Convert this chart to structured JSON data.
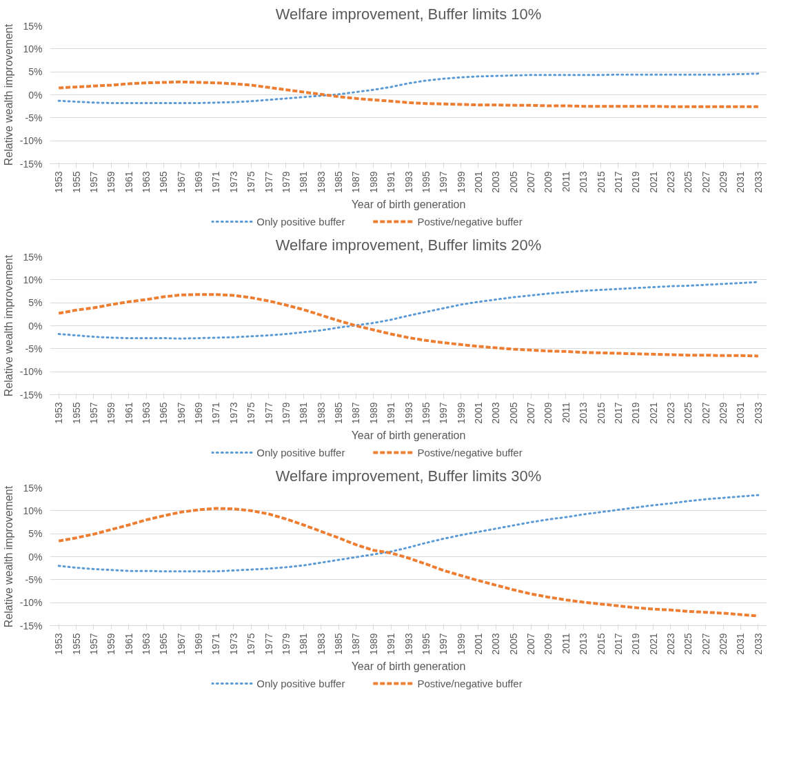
{
  "chart_data": [
    {
      "type": "line",
      "title": "Welfare improvement, Buffer limits 10%",
      "xlabel": "Year of birth generation",
      "ylabel": "Relative wealth improvement",
      "categories": [
        "1953",
        "1955",
        "1957",
        "1959",
        "1961",
        "1963",
        "1965",
        "1967",
        "1969",
        "1971",
        "1973",
        "1975",
        "1977",
        "1979",
        "1981",
        "1983",
        "1985",
        "1987",
        "1989",
        "1991",
        "1993",
        "1995",
        "1997",
        "1999",
        "2001",
        "2003",
        "2005",
        "2007",
        "2009",
        "2011",
        "2013",
        "2015",
        "2017",
        "2019",
        "2021",
        "2023",
        "2025",
        "2027",
        "2029",
        "2031",
        "2033"
      ],
      "ylim": [
        -15,
        15
      ],
      "yticks": [
        {
          "value": -15,
          "label": "-15%"
        },
        {
          "value": -10,
          "label": "-10%"
        },
        {
          "value": -5,
          "label": "-5%"
        },
        {
          "value": 0,
          "label": "0%"
        },
        {
          "value": 5,
          "label": "5%"
        },
        {
          "value": 10,
          "label": "10%"
        },
        {
          "value": 15,
          "label": "15%"
        }
      ],
      "grid": "y",
      "legend": "bottom",
      "marker": "none",
      "series": [
        {
          "name": "Only positive buffer",
          "color": "#5b9bd5",
          "line_style": "dotted",
          "values": [
            -1.3,
            -1.5,
            -1.7,
            -1.8,
            -1.8,
            -1.8,
            -1.8,
            -1.8,
            -1.8,
            -1.7,
            -1.6,
            -1.4,
            -1.1,
            -0.8,
            -0.5,
            -0.2,
            0.1,
            0.6,
            1.1,
            1.7,
            2.5,
            3.1,
            3.5,
            3.8,
            4.0,
            4.1,
            4.2,
            4.3,
            4.3,
            4.3,
            4.3,
            4.3,
            4.4,
            4.4,
            4.4,
            4.4,
            4.4,
            4.4,
            4.4,
            4.5,
            4.6
          ]
        },
        {
          "name": "Postive/negative buffer",
          "color": "#ed7d31",
          "line_style": "dashed",
          "values": [
            1.5,
            1.7,
            1.9,
            2.1,
            2.4,
            2.6,
            2.7,
            2.8,
            2.7,
            2.6,
            2.4,
            2.1,
            1.6,
            1.1,
            0.6,
            0.1,
            -0.4,
            -0.8,
            -1.1,
            -1.4,
            -1.7,
            -1.9,
            -2.0,
            -2.1,
            -2.2,
            -2.2,
            -2.3,
            -2.3,
            -2.4,
            -2.4,
            -2.5,
            -2.5,
            -2.5,
            -2.5,
            -2.5,
            -2.6,
            -2.6,
            -2.6,
            -2.6,
            -2.6,
            -2.6
          ]
        }
      ]
    },
    {
      "type": "line",
      "title": "Welfare improvement, Buffer limits 20%",
      "xlabel": "Year of birth generation",
      "ylabel": "Relative wealth improvement",
      "categories": [
        "1953",
        "1955",
        "1957",
        "1959",
        "1961",
        "1963",
        "1965",
        "1967",
        "1969",
        "1971",
        "1973",
        "1975",
        "1977",
        "1979",
        "1981",
        "1983",
        "1985",
        "1987",
        "1989",
        "1991",
        "1993",
        "1995",
        "1997",
        "1999",
        "2001",
        "2003",
        "2005",
        "2007",
        "2009",
        "2011",
        "2013",
        "2015",
        "2017",
        "2019",
        "2021",
        "2023",
        "2025",
        "2027",
        "2029",
        "2031",
        "2033"
      ],
      "ylim": [
        -15,
        15
      ],
      "yticks": [
        {
          "value": -15,
          "label": "-15%"
        },
        {
          "value": -10,
          "label": "-10%"
        },
        {
          "value": -5,
          "label": "-5%"
        },
        {
          "value": 0,
          "label": "0%"
        },
        {
          "value": 5,
          "label": "5%"
        },
        {
          "value": 10,
          "label": "10%"
        },
        {
          "value": 15,
          "label": "15%"
        }
      ],
      "grid": "y",
      "legend": "bottom",
      "marker": "none",
      "series": [
        {
          "name": "Only positive buffer",
          "color": "#5b9bd5",
          "line_style": "dotted",
          "values": [
            -1.8,
            -2.1,
            -2.4,
            -2.6,
            -2.7,
            -2.7,
            -2.7,
            -2.8,
            -2.7,
            -2.6,
            -2.5,
            -2.3,
            -2.1,
            -1.8,
            -1.4,
            -1.0,
            -0.4,
            0.1,
            0.6,
            1.3,
            2.2,
            3.0,
            3.8,
            4.6,
            5.2,
            5.7,
            6.2,
            6.6,
            7.0,
            7.3,
            7.6,
            7.8,
            8.0,
            8.2,
            8.4,
            8.6,
            8.7,
            8.9,
            9.1,
            9.3,
            9.5
          ]
        },
        {
          "name": "Postive/negative buffer",
          "color": "#ed7d31",
          "line_style": "dashed",
          "values": [
            2.7,
            3.4,
            3.9,
            4.6,
            5.2,
            5.7,
            6.3,
            6.7,
            6.8,
            6.8,
            6.6,
            6.1,
            5.4,
            4.5,
            3.5,
            2.3,
            1.1,
            0.0,
            -0.9,
            -1.8,
            -2.6,
            -3.2,
            -3.7,
            -4.1,
            -4.5,
            -4.8,
            -5.1,
            -5.3,
            -5.5,
            -5.6,
            -5.8,
            -5.9,
            -6.0,
            -6.1,
            -6.2,
            -6.3,
            -6.4,
            -6.4,
            -6.5,
            -6.5,
            -6.6
          ]
        }
      ]
    },
    {
      "type": "line",
      "title": "Welfare improvement, Buffer limits 30%",
      "xlabel": "Year of birth generation",
      "ylabel": "Relative wealth improvement",
      "categories": [
        "1953",
        "1955",
        "1957",
        "1959",
        "1961",
        "1963",
        "1965",
        "1967",
        "1969",
        "1971",
        "1973",
        "1975",
        "1977",
        "1979",
        "1981",
        "1983",
        "1985",
        "1987",
        "1989",
        "1991",
        "1993",
        "1995",
        "1997",
        "1999",
        "2001",
        "2003",
        "2005",
        "2007",
        "2009",
        "2011",
        "2013",
        "2015",
        "2017",
        "2019",
        "2021",
        "2023",
        "2025",
        "2027",
        "2029",
        "2031",
        "2033"
      ],
      "ylim": [
        -15,
        15
      ],
      "yticks": [
        {
          "value": -15,
          "label": "-15%"
        },
        {
          "value": -10,
          "label": "-10%"
        },
        {
          "value": -5,
          "label": "-5%"
        },
        {
          "value": 0,
          "label": "0%"
        },
        {
          "value": 5,
          "label": "5%"
        },
        {
          "value": 10,
          "label": "10%"
        },
        {
          "value": 15,
          "label": "15%"
        }
      ],
      "grid": "y",
      "legend": "bottom",
      "marker": "none",
      "series": [
        {
          "name": "Only positive buffer",
          "color": "#5b9bd5",
          "line_style": "dotted",
          "values": [
            -2.0,
            -2.4,
            -2.7,
            -2.9,
            -3.1,
            -3.1,
            -3.2,
            -3.2,
            -3.2,
            -3.2,
            -3.0,
            -2.8,
            -2.6,
            -2.3,
            -1.9,
            -1.3,
            -0.7,
            -0.1,
            0.5,
            1.1,
            2.0,
            3.0,
            3.9,
            4.7,
            5.4,
            6.1,
            6.8,
            7.5,
            8.1,
            8.6,
            9.2,
            9.7,
            10.2,
            10.7,
            11.2,
            11.6,
            12.1,
            12.5,
            12.8,
            13.1,
            13.4
          ]
        },
        {
          "name": "Postive/negative buffer",
          "color": "#ed7d31",
          "line_style": "dashed",
          "values": [
            3.4,
            4.1,
            4.9,
            5.9,
            6.9,
            8.0,
            8.9,
            9.7,
            10.2,
            10.5,
            10.4,
            10.0,
            9.3,
            8.2,
            6.9,
            5.5,
            4.1,
            2.6,
            1.4,
            0.8,
            -0.3,
            -1.6,
            -3.0,
            -4.1,
            -5.2,
            -6.2,
            -7.2,
            -8.1,
            -8.8,
            -9.4,
            -9.9,
            -10.3,
            -10.7,
            -11.1,
            -11.4,
            -11.6,
            -11.9,
            -12.1,
            -12.3,
            -12.6,
            -12.9
          ]
        }
      ]
    }
  ]
}
